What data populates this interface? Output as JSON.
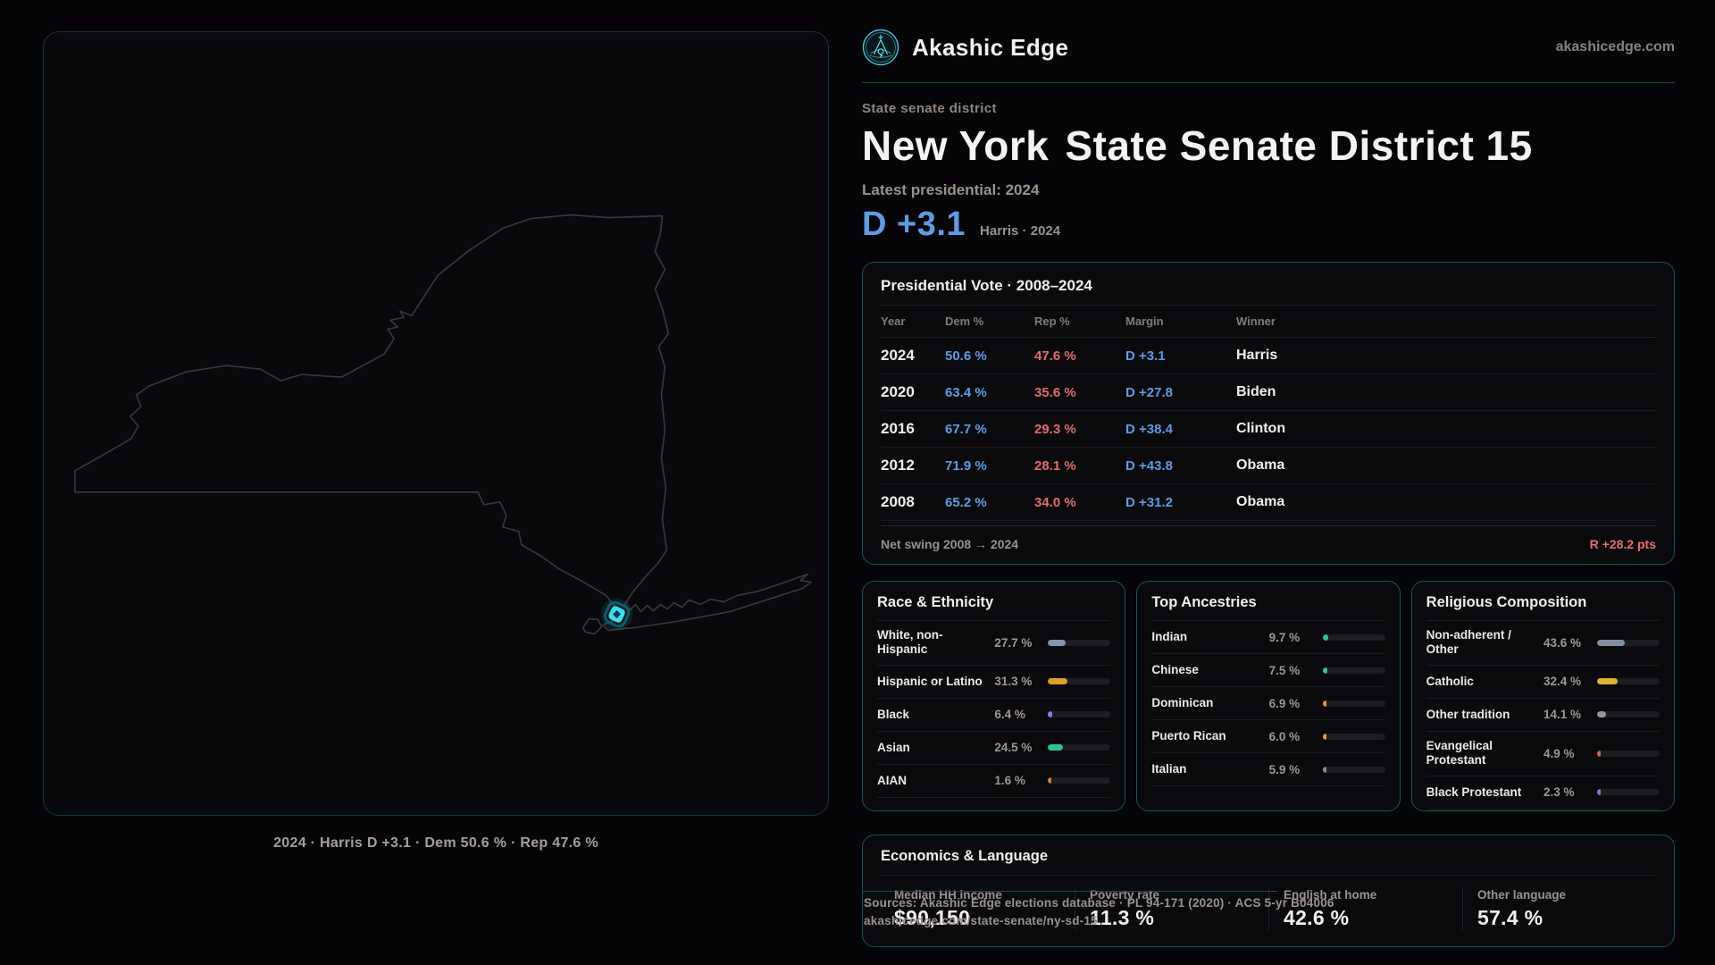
{
  "header": {
    "brand": "Akashic Edge",
    "domain": "akashicedge.com"
  },
  "hero": {
    "kicker": "State senate district",
    "title_region": "New York",
    "title_seat": "State Senate District 15",
    "latest_label": "Latest presidential: 2024",
    "margin_value": "D +3.1",
    "margin_caption": "Harris · 2024"
  },
  "map": {
    "caption": "2024 · Harris D +3.1 · Dem 50.6 % · Rep 47.6 %",
    "marker_color": "#3adef2"
  },
  "presidential": {
    "title": "Presidential Vote · 2008–2024",
    "columns": [
      "Year",
      "Dem %",
      "Rep %",
      "Margin",
      "Winner"
    ],
    "rows": [
      {
        "year": "2024",
        "dem": "50.6 %",
        "rep": "47.6 %",
        "margin": "D +3.1",
        "winner": "Harris"
      },
      {
        "year": "2020",
        "dem": "63.4 %",
        "rep": "35.6 %",
        "margin": "D +27.8",
        "winner": "Biden"
      },
      {
        "year": "2016",
        "dem": "67.7 %",
        "rep": "29.3 %",
        "margin": "D +38.4",
        "winner": "Clinton"
      },
      {
        "year": "2012",
        "dem": "71.9 %",
        "rep": "28.1 %",
        "margin": "D +43.8",
        "winner": "Obama"
      },
      {
        "year": "2008",
        "dem": "65.2 %",
        "rep": "34.0 %",
        "margin": "D +31.2",
        "winner": "Obama"
      }
    ],
    "net_swing_label": "Net swing 2008 → 2024",
    "net_swing_value": "R +28.2 pts"
  },
  "race": {
    "title": "Race & Ethnicity",
    "rows": [
      {
        "label": "White, non-Hispanic",
        "value": "27.7 %",
        "pct": 27.7,
        "color": "#8694ad"
      },
      {
        "label": "Hispanic or Latino",
        "value": "31.3 %",
        "pct": 31.3,
        "color": "#dfa026"
      },
      {
        "label": "Black",
        "value": "6.4 %",
        "pct": 6.4,
        "color": "#8b7cf0"
      },
      {
        "label": "Asian",
        "value": "24.5 %",
        "pct": 24.5,
        "color": "#2cc398"
      },
      {
        "label": "AIAN",
        "value": "1.6 %",
        "pct": 1.6,
        "color": "#d07b33"
      }
    ]
  },
  "ancestries": {
    "title": "Top Ancestries",
    "rows": [
      {
        "label": "Indian",
        "value": "9.7 %",
        "pct": 9.7,
        "color": "#2bc495"
      },
      {
        "label": "Chinese",
        "value": "7.5 %",
        "pct": 7.5,
        "color": "#2bc495"
      },
      {
        "label": "Dominican",
        "value": "6.9 %",
        "pct": 6.9,
        "color": "#dfa026"
      },
      {
        "label": "Puerto Rican",
        "value": "6.0 %",
        "pct": 6.0,
        "color": "#dfa026"
      },
      {
        "label": "Italian",
        "value": "5.9 %",
        "pct": 5.9,
        "color": "#7d8ba3"
      }
    ]
  },
  "religion": {
    "title": "Religious Composition",
    "rows": [
      {
        "label": "Non-adherent / Other",
        "value": "43.6 %",
        "pct": 43.6,
        "color": "#848ea3"
      },
      {
        "label": "Catholic",
        "value": "32.4 %",
        "pct": 32.4,
        "color": "#ddb32f"
      },
      {
        "label": "Other tradition",
        "value": "14.1 %",
        "pct": 14.1,
        "color": "#8e97a5"
      },
      {
        "label": "Evangelical Protestant",
        "value": "4.9 %",
        "pct": 4.9,
        "color": "#e25757"
      },
      {
        "label": "Black Protestant",
        "value": "2.3 %",
        "pct": 2.3,
        "color": "#7f74e8"
      }
    ]
  },
  "economics": {
    "title": "Economics & Language",
    "stats": [
      {
        "label": "Median HH income",
        "value": "$90,150"
      },
      {
        "label": "Poverty rate",
        "value": "11.3 %"
      },
      {
        "label": "English at home",
        "value": "42.6 %"
      },
      {
        "label": "Other language",
        "value": "57.4 %"
      }
    ]
  },
  "footer": {
    "line1": "Sources: Akashic Edge elections database · PL 94-171 (2020) · ACS 5-yr B04006",
    "line2": "akashicedge.com/state-senate/ny-sd-15"
  },
  "colors": {
    "accent_teal": "#2fd4e8",
    "dem_blue": "#5b9de6",
    "rep_red": "#e26b6b",
    "card_border": "#17525f"
  },
  "chart_data": [
    {
      "type": "table",
      "title": "Presidential Vote · 2008–2024",
      "columns": [
        "Year",
        "Dem %",
        "Rep %",
        "Margin",
        "Winner"
      ],
      "rows": [
        [
          2024,
          50.6,
          47.6,
          "D +3.1",
          "Harris"
        ],
        [
          2020,
          63.4,
          35.6,
          "D +27.8",
          "Biden"
        ],
        [
          2016,
          67.7,
          29.3,
          "D +38.4",
          "Clinton"
        ],
        [
          2012,
          71.9,
          28.1,
          "D +43.8",
          "Obama"
        ],
        [
          2008,
          65.2,
          34.0,
          "D +31.2",
          "Obama"
        ]
      ],
      "footnote": {
        "label": "Net swing 2008 → 2024",
        "value": "R +28.2 pts"
      }
    },
    {
      "type": "bar",
      "title": "Race & Ethnicity",
      "categories": [
        "White, non-Hispanic",
        "Hispanic or Latino",
        "Black",
        "Asian",
        "AIAN"
      ],
      "values": [
        27.7,
        31.3,
        6.4,
        24.5,
        1.6
      ],
      "unit": "%",
      "xlim": [
        0,
        100
      ]
    },
    {
      "type": "bar",
      "title": "Top Ancestries",
      "categories": [
        "Indian",
        "Chinese",
        "Dominican",
        "Puerto Rican",
        "Italian"
      ],
      "values": [
        9.7,
        7.5,
        6.9,
        6.0,
        5.9
      ],
      "unit": "%",
      "xlim": [
        0,
        100
      ]
    },
    {
      "type": "bar",
      "title": "Religious Composition",
      "categories": [
        "Non-adherent / Other",
        "Catholic",
        "Other tradition",
        "Evangelical Protestant",
        "Black Protestant"
      ],
      "values": [
        43.6,
        32.4,
        14.1,
        4.9,
        2.3
      ],
      "unit": "%",
      "xlim": [
        0,
        100
      ]
    },
    {
      "type": "table",
      "title": "Economics & Language",
      "columns": [
        "Median HH income",
        "Poverty rate",
        "English at home",
        "Other language"
      ],
      "rows": [
        [
          "$90,150",
          "11.3 %",
          "42.6 %",
          "57.4 %"
        ]
      ]
    }
  ]
}
